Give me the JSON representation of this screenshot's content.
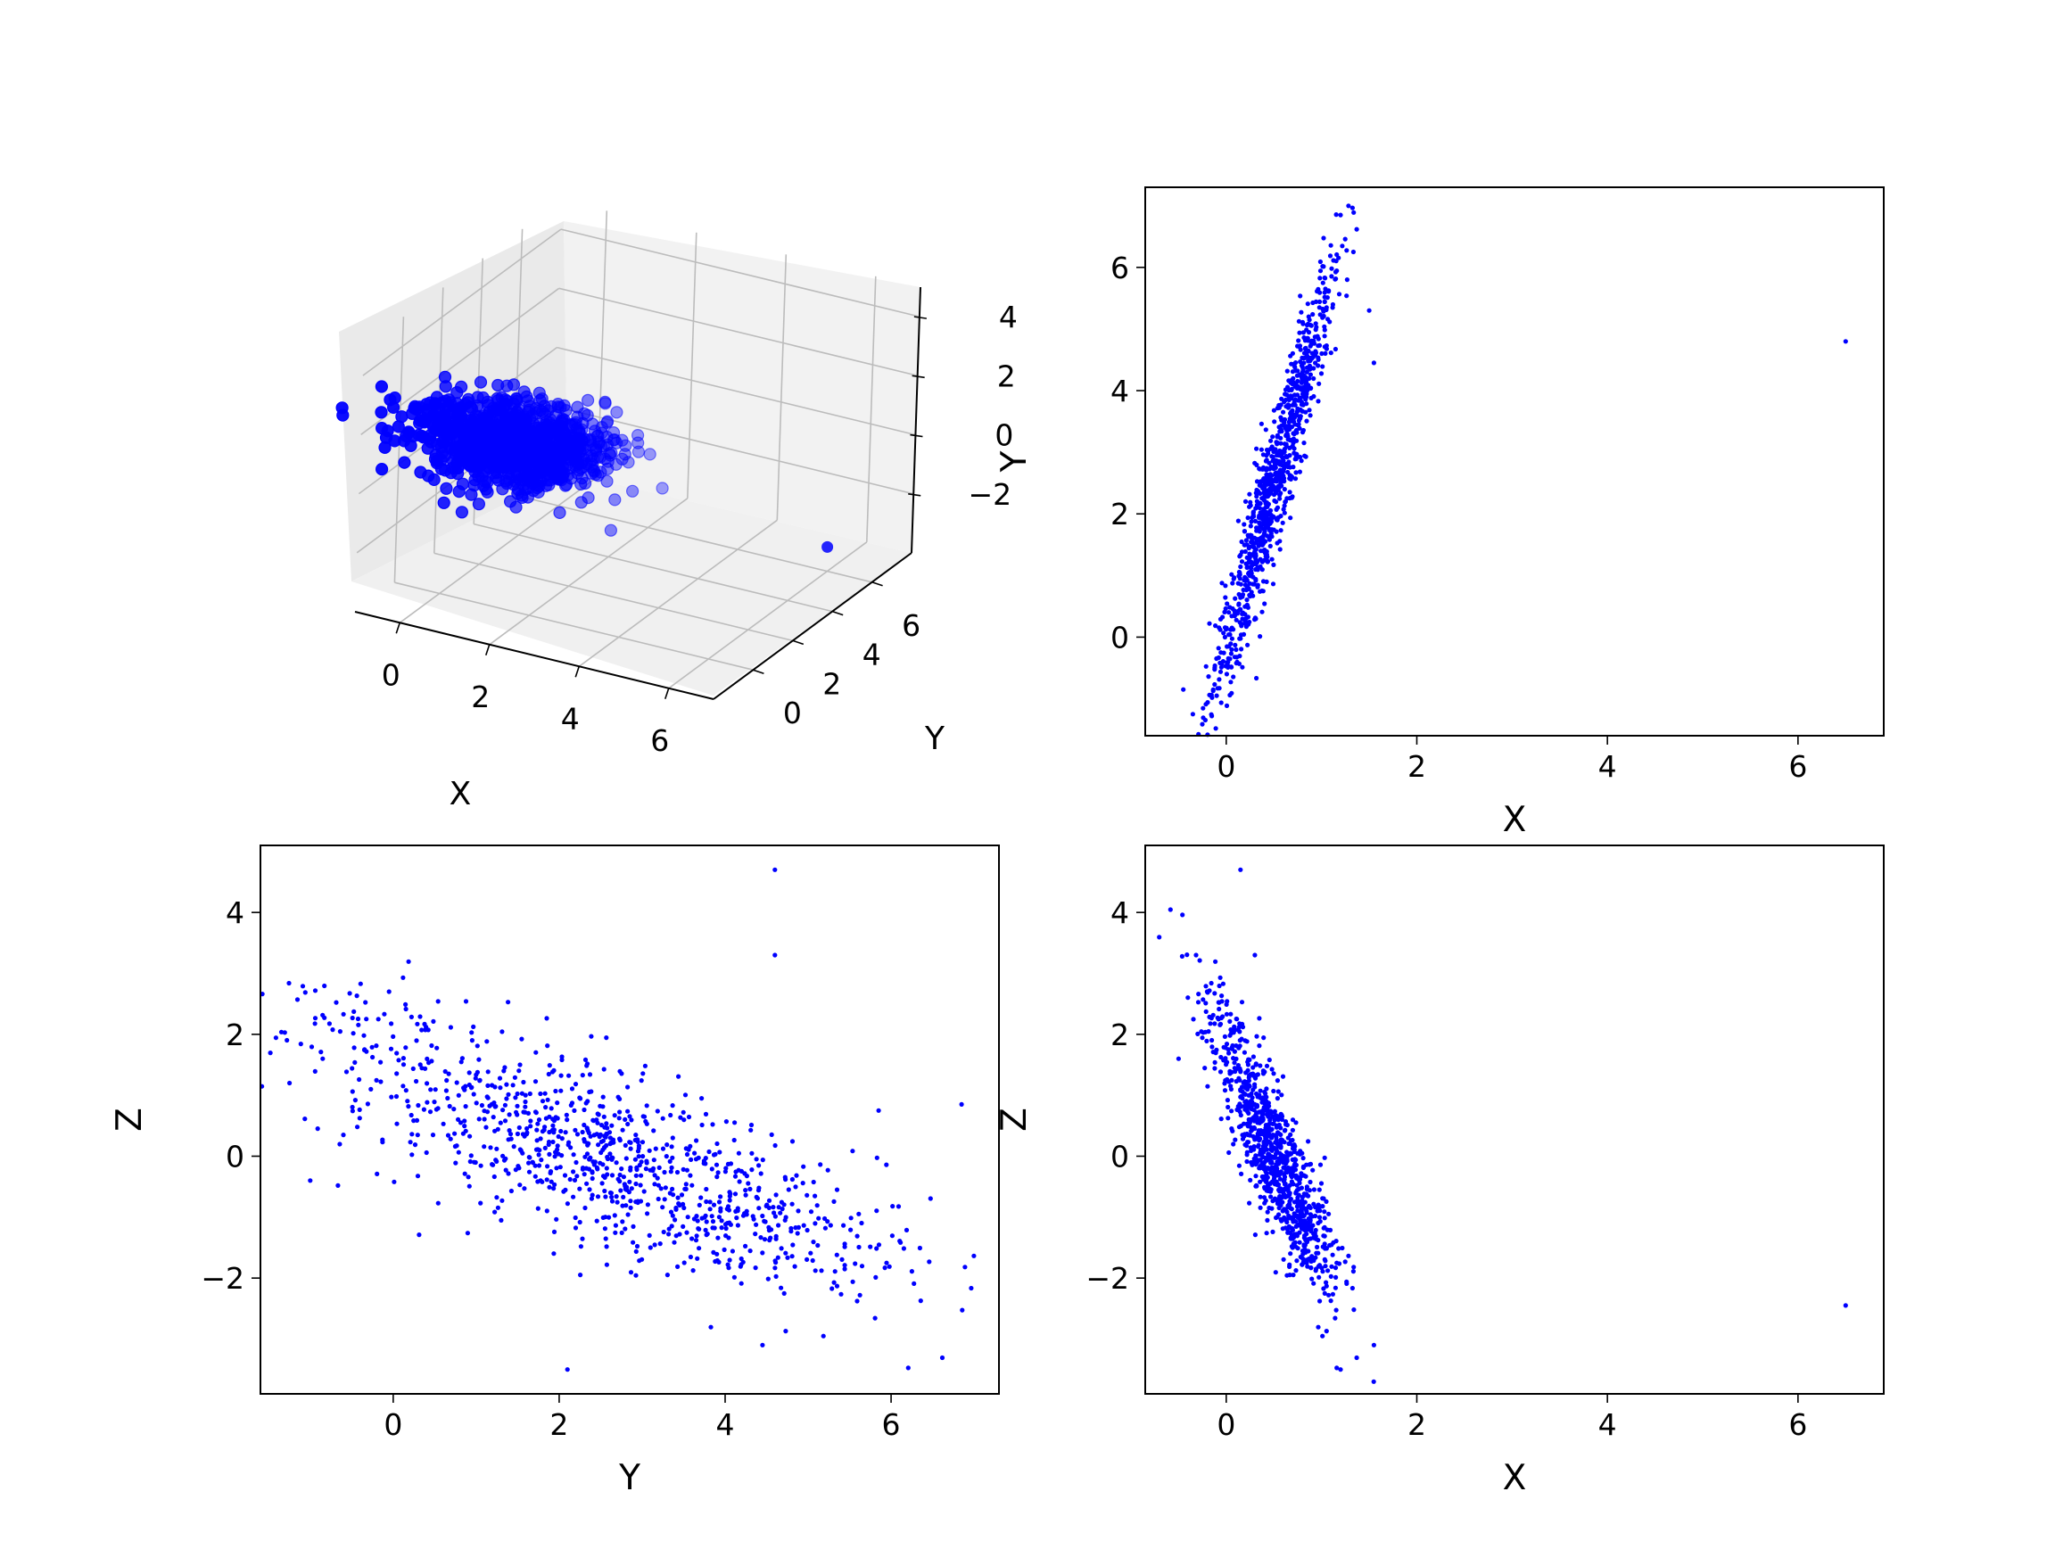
{
  "figure": {
    "background": "#ffffff",
    "marker_color": "#0000ff"
  },
  "chart_data": [
    {
      "type": "scatter",
      "projection": "3d",
      "xlabel": "X",
      "ylabel": "Y",
      "zlabel": "",
      "xlim": [
        -1,
        7
      ],
      "ylim": [
        -2,
        8
      ],
      "zlim": [
        -4,
        5
      ],
      "xticks": [
        0,
        2,
        4,
        6
      ],
      "yticks": [
        0,
        2,
        4,
        6
      ],
      "zticks": [
        -2,
        0,
        2,
        4
      ],
      "tick_labels": {
        "x": [
          "0",
          "2",
          "4",
          "6"
        ],
        "y": [
          "0",
          "2",
          "4",
          "6"
        ],
        "z": [
          "−2",
          "0",
          "2",
          "4"
        ]
      },
      "grid": true,
      "cluster": {
        "x_mean": 0.5,
        "y_mean": 2.5,
        "z_mean": 0.0,
        "n": 1000
      },
      "outlier": {
        "x": 6.5,
        "y": 4.8,
        "z": -2.4
      },
      "color": "#0000ff"
    },
    {
      "type": "scatter",
      "xlabel": "X",
      "ylabel": "Y",
      "xlim": [
        -0.85,
        6.9
      ],
      "ylim": [
        -1.6,
        7.3
      ],
      "xticks": [
        0,
        2,
        4,
        6
      ],
      "yticks": [
        0,
        2,
        4,
        6
      ],
      "tick_labels": {
        "x": [
          "0",
          "2",
          "4",
          "6"
        ],
        "y": [
          "0",
          "2",
          "4",
          "6"
        ]
      },
      "grid": false,
      "points": [
        [
          1.2,
          6.85
        ],
        [
          6.5,
          4.8
        ],
        [
          -0.35,
          -1.25
        ],
        [
          -0.45,
          -0.85
        ],
        [
          -0.1,
          -0.95
        ],
        [
          1.55,
          4.45
        ],
        [
          1.5,
          5.3
        ]
      ],
      "cluster": {
        "x_mean": 0.5,
        "y_mean": 2.5,
        "n": 1000
      },
      "color": "#0000ff"
    },
    {
      "type": "scatter",
      "xlabel": "Y",
      "ylabel": "Z",
      "xlim": [
        -1.6,
        7.3
      ],
      "ylim": [
        -3.9,
        5.1
      ],
      "xticks": [
        0,
        2,
        4,
        6
      ],
      "yticks": [
        -2,
        0,
        2,
        4
      ],
      "tick_labels": {
        "x": [
          "0",
          "2",
          "4",
          "6"
        ],
        "y": [
          "−2",
          "0",
          "2",
          "4"
        ]
      },
      "grid": false,
      "points": [
        [
          4.6,
          4.7
        ],
        [
          4.6,
          3.3
        ],
        [
          6.85,
          0.85
        ],
        [
          -1.25,
          1.2
        ],
        [
          2.1,
          -3.5
        ],
        [
          -1.0,
          -0.4
        ],
        [
          5.85,
          0.75
        ],
        [
          -0.6,
          0.35
        ],
        [
          4.45,
          -3.1
        ],
        [
          -0.05,
          2.7
        ],
        [
          -0.85,
          1.6
        ]
      ],
      "cluster": {
        "x_mean": 2.5,
        "y_mean": 0.0,
        "n": 1000
      },
      "color": "#0000ff"
    },
    {
      "type": "scatter",
      "xlabel": "X",
      "ylabel": "Z",
      "xlim": [
        -0.85,
        6.9
      ],
      "ylim": [
        -3.9,
        5.1
      ],
      "xticks": [
        0,
        2,
        4,
        6
      ],
      "yticks": [
        -2,
        0,
        2,
        4
      ],
      "tick_labels": {
        "x": [
          "0",
          "2",
          "4",
          "6"
        ],
        "y": [
          "−2",
          "0",
          "2",
          "4"
        ]
      },
      "grid": false,
      "points": [
        [
          0.15,
          4.7
        ],
        [
          0.3,
          3.3
        ],
        [
          6.5,
          -2.45
        ],
        [
          1.2,
          -3.5
        ],
        [
          1.55,
          -3.1
        ],
        [
          -0.5,
          1.6
        ],
        [
          -0.2,
          2.7
        ]
      ],
      "cluster": {
        "x_mean": 0.5,
        "y_mean": 0.0,
        "n": 1000
      },
      "color": "#0000ff"
    }
  ]
}
